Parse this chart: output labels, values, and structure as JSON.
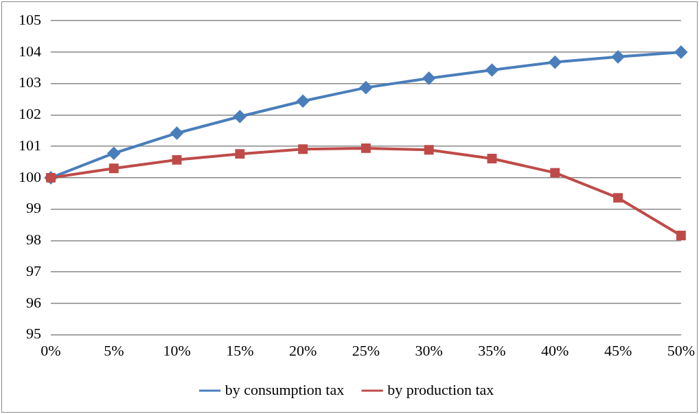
{
  "chart_data": {
    "type": "line",
    "categories": [
      "0%",
      "5%",
      "10%",
      "15%",
      "20%",
      "25%",
      "30%",
      "35%",
      "40%",
      "45%",
      "50%"
    ],
    "series": [
      {
        "name": "by consumption tax",
        "color": "#4a7ebb",
        "marker": "diamond",
        "values": [
          100,
          100.78,
          101.42,
          101.95,
          102.44,
          102.87,
          103.17,
          103.43,
          103.68,
          103.85,
          104.0
        ]
      },
      {
        "name": "by production tax",
        "color": "#be4b48",
        "marker": "square",
        "values": [
          100,
          100.3,
          100.57,
          100.76,
          100.91,
          100.94,
          100.89,
          100.61,
          100.16,
          99.36,
          98.16
        ]
      }
    ],
    "ylim": [
      95,
      105
    ],
    "yticks": [
      95,
      96,
      97,
      98,
      99,
      100,
      101,
      102,
      103,
      104,
      105
    ],
    "grid": "y",
    "legend": "bottom",
    "line_style": "solid"
  }
}
